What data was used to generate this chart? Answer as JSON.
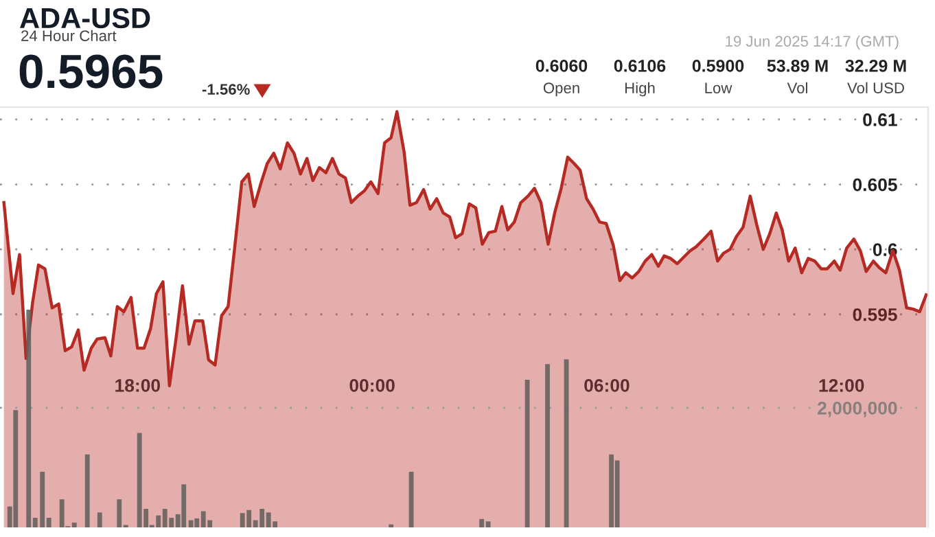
{
  "chart_data": {
    "type": "area",
    "title": "ADA-USD",
    "subtitle": "24 Hour Chart",
    "annotations": [
      "0.5965",
      "-1.56%",
      "19 Jun 2025 14:17 (GMT)",
      "0.6060",
      "Open",
      "0.6106",
      "High",
      "0.5900",
      "Low",
      "53.89 M",
      "Vol",
      "32.29 M",
      "Vol USD"
    ],
    "xlim": [
      "2025-06-18T14:29",
      "2025-06-19T14:13"
    ],
    "xticks": [
      {
        "value": "2025-06-18T18:00",
        "label": "18:00"
      },
      {
        "value": "2025-06-19T00:00",
        "label": "00:00"
      },
      {
        "value": "2025-06-19T06:00",
        "label": "06:00"
      },
      {
        "value": "2025-06-19T12:00",
        "label": "12:00"
      }
    ],
    "ylim": [
      0.5786,
      0.61095
    ],
    "yticks": [
      0.595,
      0.6,
      0.605,
      0.61
    ],
    "y2lim": [
      0,
      7030000
    ],
    "y2ticks": [
      {
        "value": 2000000,
        "label": "2,000,000"
      }
    ],
    "grid": "y",
    "legend": false,
    "marker": "none",
    "line_style": "solid",
    "series": [
      {
        "color": "#b52a22",
        "x": [
          "2025-06-18T14:35",
          "2025-06-18T14:49",
          "2025-06-18T14:59",
          "2025-06-18T15:09",
          "2025-06-18T15:19",
          "2025-06-18T15:28",
          "2025-06-18T15:38",
          "2025-06-18T15:49",
          "2025-06-18T15:59",
          "2025-06-18T16:09",
          "2025-06-18T16:19",
          "2025-06-18T16:29",
          "2025-06-18T16:38",
          "2025-06-18T16:49",
          "2025-06-18T16:58",
          "2025-06-18T17:10",
          "2025-06-18T17:19",
          "2025-06-18T17:29",
          "2025-06-18T17:39",
          "2025-06-18T17:50",
          "2025-06-18T18:00",
          "2025-06-18T18:10",
          "2025-06-18T18:20",
          "2025-06-18T18:29",
          "2025-06-18T18:39",
          "2025-06-18T18:49",
          "2025-06-18T18:59",
          "2025-06-18T19:09",
          "2025-06-18T19:19",
          "2025-06-18T19:28",
          "2025-06-18T19:40",
          "2025-06-18T19:49",
          "2025-06-18T19:59",
          "2025-06-18T20:09",
          "2025-06-18T20:19",
          "2025-06-18T20:29",
          "2025-06-18T20:40",
          "2025-06-18T20:50",
          "2025-06-18T20:59",
          "2025-06-18T21:10",
          "2025-06-18T21:19",
          "2025-06-18T21:29",
          "2025-06-18T21:39",
          "2025-06-18T21:50",
          "2025-06-18T22:00",
          "2025-06-18T22:10",
          "2025-06-18T22:20",
          "2025-06-18T22:29",
          "2025-06-18T22:39",
          "2025-06-18T22:49",
          "2025-06-18T22:59",
          "2025-06-18T23:09",
          "2025-06-18T23:19",
          "2025-06-18T23:28",
          "2025-06-18T23:38",
          "2025-06-18T23:48",
          "2025-06-18T23:58",
          "2025-06-19T00:09",
          "2025-06-19T00:19",
          "2025-06-19T00:29",
          "2025-06-19T00:38",
          "2025-06-19T00:49",
          "2025-06-19T00:58",
          "2025-06-19T01:08",
          "2025-06-19T01:19",
          "2025-06-19T01:29",
          "2025-06-19T01:39",
          "2025-06-19T01:49",
          "2025-06-19T01:59",
          "2025-06-19T02:08",
          "2025-06-19T02:18",
          "2025-06-19T02:29",
          "2025-06-19T02:39",
          "2025-06-19T02:49",
          "2025-06-19T02:59",
          "2025-06-19T03:09",
          "2025-06-19T03:19",
          "2025-06-19T03:28",
          "2025-06-19T03:38",
          "2025-06-19T03:48",
          "2025-06-19T03:59",
          "2025-06-19T04:09",
          "2025-06-19T04:19",
          "2025-06-19T04:30",
          "2025-06-19T04:40",
          "2025-06-19T04:50",
          "2025-06-19T05:00",
          "2025-06-19T05:10",
          "2025-06-19T05:19",
          "2025-06-19T05:29",
          "2025-06-19T05:39",
          "2025-06-19T05:49",
          "2025-06-19T05:59",
          "2025-06-19T06:10",
          "2025-06-19T06:20",
          "2025-06-19T06:29",
          "2025-06-19T06:39",
          "2025-06-19T06:49",
          "2025-06-19T06:59",
          "2025-06-19T07:09",
          "2025-06-19T07:19",
          "2025-06-19T07:28",
          "2025-06-19T07:38",
          "2025-06-19T07:48",
          "2025-06-19T07:58",
          "2025-06-19T08:08",
          "2025-06-19T08:17",
          "2025-06-19T08:29",
          "2025-06-19T08:40",
          "2025-06-19T08:50",
          "2025-06-19T08:59",
          "2025-06-19T09:09",
          "2025-06-19T09:19",
          "2025-06-19T09:29",
          "2025-06-19T09:40",
          "2025-06-19T09:50",
          "2025-06-19T10:00",
          "2025-06-19T10:10",
          "2025-06-19T10:20",
          "2025-06-19T10:29",
          "2025-06-19T10:39",
          "2025-06-19T10:49",
          "2025-06-19T10:59",
          "2025-06-19T11:09",
          "2025-06-19T11:19",
          "2025-06-19T11:29",
          "2025-06-19T11:38",
          "2025-06-19T11:49",
          "2025-06-19T11:58",
          "2025-06-19T12:08",
          "2025-06-19T12:19",
          "2025-06-19T12:29",
          "2025-06-19T12:38",
          "2025-06-19T12:49",
          "2025-06-19T12:58",
          "2025-06-19T13:08",
          "2025-06-19T13:19",
          "2025-06-19T13:29",
          "2025-06-19T13:40",
          "2025-06-19T13:50",
          "2025-06-19T14:00",
          "2025-06-19T14:10"
        ],
        "values": [
          0.6036,
          0.5966,
          0.5996,
          0.5916,
          0.5959,
          0.5988,
          0.5985,
          0.5955,
          0.5958,
          0.5922,
          0.5925,
          0.5938,
          0.5907,
          0.5924,
          0.5931,
          0.5932,
          0.5918,
          0.5956,
          0.5952,
          0.5963,
          0.5924,
          0.5924,
          0.5939,
          0.5966,
          0.5975,
          0.5895,
          0.5931,
          0.5972,
          0.5927,
          0.5945,
          0.5945,
          0.5915,
          0.5911,
          0.5949,
          0.5956,
          0.6001,
          0.6052,
          0.6058,
          0.6033,
          0.6052,
          0.6066,
          0.6074,
          0.6062,
          0.6082,
          0.6074,
          0.6058,
          0.607,
          0.6053,
          0.6063,
          0.6059,
          0.607,
          0.6058,
          0.6055,
          0.6036,
          0.6041,
          0.6045,
          0.6052,
          0.6043,
          0.6082,
          0.6086,
          0.6106,
          0.6075,
          0.6034,
          0.6036,
          0.6046,
          0.6031,
          0.6039,
          0.6028,
          0.6025,
          0.6009,
          0.6012,
          0.6035,
          0.6032,
          0.6004,
          0.6013,
          0.6014,
          0.6033,
          0.6015,
          0.6021,
          0.6036,
          0.6041,
          0.6047,
          0.6036,
          0.6004,
          0.6028,
          0.6047,
          0.6071,
          0.6066,
          0.6061,
          0.6039,
          0.6031,
          0.6021,
          0.602,
          0.6003,
          0.5976,
          0.5982,
          0.5978,
          0.5983,
          0.5991,
          0.5996,
          0.5987,
          0.5995,
          0.5993,
          0.5989,
          0.5994,
          0.5999,
          0.6002,
          0.6008,
          0.6014,
          0.5991,
          0.5997,
          0.6,
          0.601,
          0.6017,
          0.6041,
          0.6019,
          0.6,
          0.6012,
          0.6028,
          0.6015,
          0.5991,
          0.6001,
          0.5982,
          0.5993,
          0.5991,
          0.5985,
          0.5985,
          0.5991,
          0.5984,
          0.6001,
          0.6008,
          0.5999,
          0.5983,
          0.5991,
          0.5986,
          0.5982,
          0.5999,
          0.5984,
          0.5955,
          0.5954,
          0.5952,
          0.5965
        ]
      },
      {
        "type": "bar",
        "axis": "y2",
        "color": "#66625f",
        "x": [
          "2025-06-18T14:44",
          "2025-06-18T14:53",
          "2025-06-18T15:13",
          "2025-06-18T15:23",
          "2025-06-18T15:34",
          "2025-06-18T15:44",
          "2025-06-18T16:04",
          "2025-06-18T16:13",
          "2025-06-18T16:23",
          "2025-06-18T16:43",
          "2025-06-18T17:02",
          "2025-06-18T17:32",
          "2025-06-18T17:42",
          "2025-06-18T18:03",
          "2025-06-18T18:13",
          "2025-06-18T18:22",
          "2025-06-18T18:32",
          "2025-06-18T18:42",
          "2025-06-18T18:52",
          "2025-06-18T19:02",
          "2025-06-18T19:11",
          "2025-06-18T19:22",
          "2025-06-18T19:31",
          "2025-06-18T19:41",
          "2025-06-18T19:51",
          "2025-06-18T20:41",
          "2025-06-18T20:51",
          "2025-06-18T21:01",
          "2025-06-18T21:11",
          "2025-06-18T21:21",
          "2025-06-18T21:31",
          "2025-06-19T00:29",
          "2025-06-19T01:00",
          "2025-06-19T02:48",
          "2025-06-19T02:58",
          "2025-06-19T03:58",
          "2025-06-19T04:29",
          "2025-06-19T04:58",
          "2025-06-19T06:07",
          "2025-06-19T06:16"
        ],
        "values": [
          350000,
          1960000,
          3640000,
          160000,
          930000,
          160000,
          470000,
          20000,
          80000,
          1220000,
          250000,
          470000,
          40000,
          1580000,
          310000,
          40000,
          200000,
          310000,
          160000,
          220000,
          720000,
          120000,
          150000,
          270000,
          120000,
          240000,
          290000,
          120000,
          310000,
          250000,
          100000,
          50000,
          930000,
          140000,
          100000,
          2470000,
          2730000,
          2810000,
          1220000,
          1120000
        ]
      }
    ]
  }
}
